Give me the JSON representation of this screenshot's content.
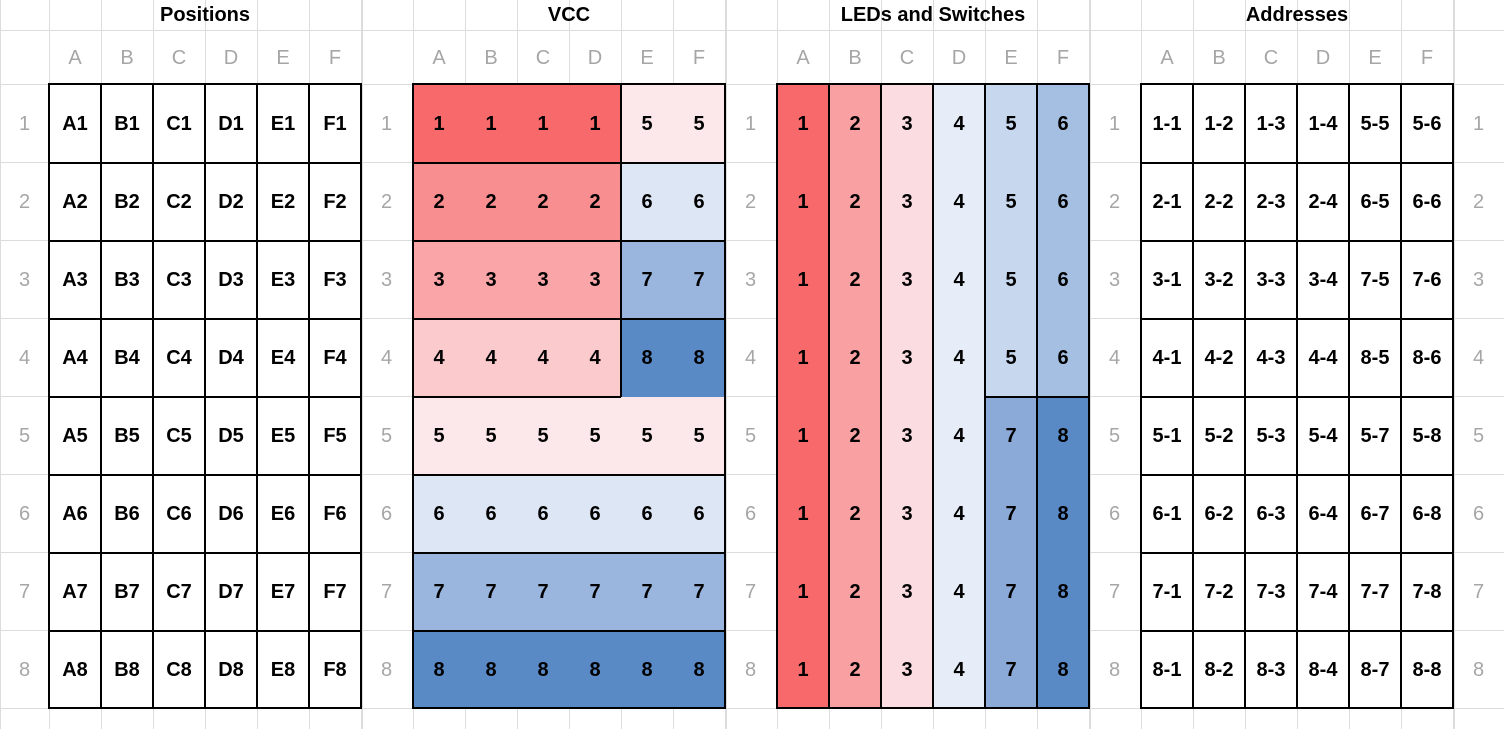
{
  "colors": {
    "v1": "#f8696b",
    "v2": "#f98e90",
    "v3": "#faa5a7",
    "v4": "#fbcacc",
    "v5": "#fce8ea",
    "v6": "#dde6f4",
    "v7": "#9ab6de",
    "v8": "#5a8ac6",
    "l1": "#f8696b",
    "l2": "#f9a0a2",
    "l3": "#fbdde1",
    "l4": "#e7edf8",
    "l5": "#c7d7ee",
    "l6": "#a4bfe2",
    "l7": "#8caad8",
    "l8": "#5a8ac6"
  },
  "row_numbers": [
    "1",
    "2",
    "3",
    "4",
    "5",
    "6",
    "7",
    "8"
  ],
  "col_letters": [
    "A",
    "B",
    "C",
    "D",
    "E",
    "F"
  ],
  "sections": {
    "positions": {
      "title": "Positions",
      "cells": [
        [
          "A1",
          "B1",
          "C1",
          "D1",
          "E1",
          "F1"
        ],
        [
          "A2",
          "B2",
          "C2",
          "D2",
          "E2",
          "F2"
        ],
        [
          "A3",
          "B3",
          "C3",
          "D3",
          "E3",
          "F3"
        ],
        [
          "A4",
          "B4",
          "C4",
          "D4",
          "E4",
          "F4"
        ],
        [
          "A5",
          "B5",
          "C5",
          "D5",
          "E5",
          "F5"
        ],
        [
          "A6",
          "B6",
          "C6",
          "D6",
          "E6",
          "F6"
        ],
        [
          "A7",
          "B7",
          "C7",
          "D7",
          "E7",
          "F7"
        ],
        [
          "A8",
          "B8",
          "C8",
          "D8",
          "E8",
          "F8"
        ]
      ]
    },
    "vcc": {
      "title": "VCC",
      "cells": [
        [
          "1",
          "1",
          "1",
          "1",
          "5",
          "5"
        ],
        [
          "2",
          "2",
          "2",
          "2",
          "6",
          "6"
        ],
        [
          "3",
          "3",
          "3",
          "3",
          "7",
          "7"
        ],
        [
          "4",
          "4",
          "4",
          "4",
          "8",
          "8"
        ],
        [
          "5",
          "5",
          "5",
          "5",
          "5",
          "5"
        ],
        [
          "6",
          "6",
          "6",
          "6",
          "6",
          "6"
        ],
        [
          "7",
          "7",
          "7",
          "7",
          "7",
          "7"
        ],
        [
          "8",
          "8",
          "8",
          "8",
          "8",
          "8"
        ]
      ]
    },
    "leds": {
      "title": "LEDs and Switches",
      "cells": [
        [
          "1",
          "2",
          "3",
          "4",
          "5",
          "6"
        ],
        [
          "1",
          "2",
          "3",
          "4",
          "5",
          "6"
        ],
        [
          "1",
          "2",
          "3",
          "4",
          "5",
          "6"
        ],
        [
          "1",
          "2",
          "3",
          "4",
          "5",
          "6"
        ],
        [
          "1",
          "2",
          "3",
          "4",
          "7",
          "8"
        ],
        [
          "1",
          "2",
          "3",
          "4",
          "7",
          "8"
        ],
        [
          "1",
          "2",
          "3",
          "4",
          "7",
          "8"
        ],
        [
          "1",
          "2",
          "3",
          "4",
          "7",
          "8"
        ]
      ]
    },
    "addresses": {
      "title": "Addresses",
      "cells": [
        [
          "1-1",
          "1-2",
          "1-3",
          "1-4",
          "5-5",
          "5-6"
        ],
        [
          "2-1",
          "2-2",
          "2-3",
          "2-4",
          "6-5",
          "6-6"
        ],
        [
          "3-1",
          "3-2",
          "3-3",
          "3-4",
          "7-5",
          "7-6"
        ],
        [
          "4-1",
          "4-2",
          "4-3",
          "4-4",
          "8-5",
          "8-6"
        ],
        [
          "5-1",
          "5-2",
          "5-3",
          "5-4",
          "5-7",
          "5-8"
        ],
        [
          "6-1",
          "6-2",
          "6-3",
          "6-4",
          "6-7",
          "6-8"
        ],
        [
          "7-1",
          "7-2",
          "7-3",
          "7-4",
          "7-7",
          "7-8"
        ],
        [
          "8-1",
          "8-2",
          "8-3",
          "8-4",
          "8-7",
          "8-8"
        ]
      ]
    }
  }
}
